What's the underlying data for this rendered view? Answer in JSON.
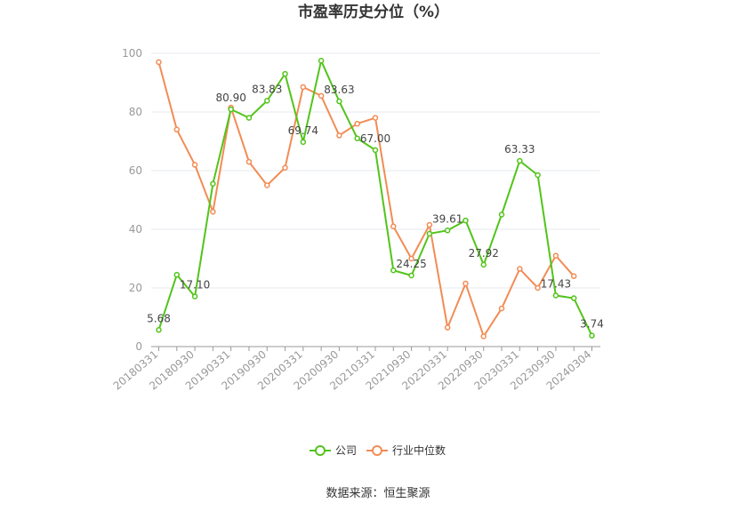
{
  "chart_data": {
    "type": "line",
    "title": "市盈率历史分位（%）",
    "source": "数据来源：恒生聚源",
    "ylim": [
      0,
      100
    ],
    "yticks": [
      0,
      20,
      40,
      60,
      80,
      100
    ],
    "grid": true,
    "legend_position": "bottom",
    "x_tick_labels": [
      "20180331",
      "20180930",
      "20190331",
      "20190930",
      "20200331",
      "20200930",
      "20210331",
      "20210930",
      "20220331",
      "20220930",
      "20230331",
      "20230930",
      "20240304"
    ],
    "x": [
      "20180331",
      "20180630",
      "20180930",
      "20181231",
      "20190331",
      "20190630",
      "20190930",
      "20191231",
      "20200331",
      "20200630",
      "20200930",
      "20201231",
      "20210331",
      "20210630",
      "20210930",
      "20211231",
      "20220331",
      "20220630",
      "20220930",
      "20221231",
      "20230331",
      "20230630",
      "20230930",
      "20231231",
      "20240304"
    ],
    "series": [
      {
        "name": "公司",
        "color": "#52c41a",
        "values": [
          5.68,
          24.5,
          17.1,
          55.5,
          80.9,
          78.0,
          83.83,
          93.0,
          69.74,
          97.5,
          83.63,
          71.0,
          67.0,
          26.0,
          24.25,
          38.5,
          39.61,
          43.0,
          27.92,
          45.0,
          63.33,
          58.5,
          17.43,
          16.5,
          3.74
        ],
        "labels": {
          "0": "5.68",
          "2": "17.10",
          "4": "80.90",
          "6": "83.83",
          "8": "69.74",
          "10": "83.63",
          "12": "67.00",
          "14": "24.25",
          "16": "39.61",
          "18": "27.92",
          "20": "63.33",
          "22": "17.43",
          "24": "3.74"
        }
      },
      {
        "name": "行业中位数",
        "color": "#f28c55",
        "values": [
          97.0,
          74.0,
          62.0,
          46.0,
          81.5,
          63.0,
          55.0,
          61.0,
          88.5,
          85.5,
          72.0,
          76.0,
          78.0,
          41.0,
          30.0,
          41.5,
          6.5,
          21.5,
          3.5,
          13.0,
          26.5,
          20.0,
          31.0,
          24.0,
          null
        ]
      }
    ]
  }
}
